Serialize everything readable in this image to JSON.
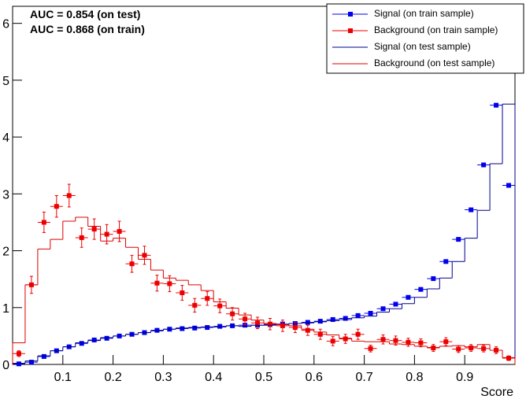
{
  "chart_data": {
    "type": "histogram",
    "x_label": "Score",
    "annotations": [
      "AUC = 0.854  (on test)",
      "AUC = 0.868 (on train)"
    ],
    "bins": [
      0,
      0.025,
      0.05,
      0.075,
      0.1,
      0.125,
      0.15,
      0.175,
      0.2,
      0.225,
      0.25,
      0.275,
      0.3,
      0.325,
      0.35,
      0.375,
      0.4,
      0.425,
      0.45,
      0.475,
      0.5,
      0.525,
      0.55,
      0.575,
      0.6,
      0.625,
      0.65,
      0.675,
      0.7,
      0.725,
      0.75,
      0.775,
      0.8,
      0.825,
      0.85,
      0.875,
      0.9,
      0.925,
      0.95,
      0.975,
      1
    ],
    "xlim": [
      0,
      1
    ],
    "ylim": [
      0,
      6.3
    ],
    "xticks": [
      0.1,
      0.2,
      0.3,
      0.4,
      0.5,
      0.6,
      0.7,
      0.8,
      0.9
    ],
    "yticks": [
      0,
      1,
      2,
      3,
      4,
      5,
      6
    ],
    "legend": "top-right",
    "series": [
      {
        "name": "Signal (on train sample)",
        "color": "#0000ee",
        "style": "markers",
        "values": [
          0.01,
          0.04,
          0.14,
          0.24,
          0.31,
          0.37,
          0.43,
          0.46,
          0.5,
          0.53,
          0.56,
          0.6,
          0.62,
          0.63,
          0.64,
          0.65,
          0.67,
          0.68,
          0.69,
          0.69,
          0.7,
          0.71,
          0.72,
          0.74,
          0.76,
          0.79,
          0.81,
          0.86,
          0.9,
          0.98,
          1.06,
          1.18,
          1.32,
          1.51,
          1.81,
          2.2,
          2.72,
          3.51,
          4.56,
          3.15
        ]
      },
      {
        "name": "Background (on train sample)",
        "color": "#ee0000",
        "style": "markers",
        "values": [
          0.19,
          1.4,
          2.5,
          2.78,
          2.97,
          2.23,
          2.38,
          2.29,
          2.34,
          1.77,
          1.92,
          1.43,
          1.42,
          1.26,
          1.04,
          1.16,
          1.03,
          0.89,
          0.8,
          0.73,
          0.71,
          0.68,
          0.65,
          0.6,
          0.53,
          0.41,
          0.45,
          0.53,
          0.28,
          0.44,
          0.42,
          0.39,
          0.38,
          0.29,
          0.4,
          0.27,
          0.29,
          0.28,
          0.25,
          0.11
        ],
        "errors": [
          0.05,
          0.15,
          0.18,
          0.19,
          0.2,
          0.17,
          0.18,
          0.17,
          0.18,
          0.15,
          0.16,
          0.14,
          0.14,
          0.13,
          0.12,
          0.12,
          0.12,
          0.11,
          0.1,
          0.1,
          0.1,
          0.1,
          0.09,
          0.09,
          0.09,
          0.08,
          0.08,
          0.09,
          0.06,
          0.08,
          0.08,
          0.07,
          0.07,
          0.06,
          0.07,
          0.06,
          0.06,
          0.06,
          0.06,
          0.04
        ]
      },
      {
        "name": "Signal (on test sample)",
        "color": "#00008b",
        "style": "step",
        "values": [
          0.02,
          0.06,
          0.15,
          0.24,
          0.31,
          0.38,
          0.42,
          0.47,
          0.5,
          0.53,
          0.56,
          0.59,
          0.62,
          0.64,
          0.65,
          0.66,
          0.66,
          0.68,
          0.67,
          0.69,
          0.69,
          0.7,
          0.72,
          0.73,
          0.75,
          0.77,
          0.79,
          0.82,
          0.85,
          0.92,
          0.98,
          1.07,
          1.18,
          1.33,
          1.52,
          1.81,
          2.22,
          2.71,
          3.53,
          4.58
        ]
      },
      {
        "name": "Background (on test sample)",
        "color": "#dd0000",
        "style": "step",
        "values": [
          0.38,
          1.4,
          2.03,
          2.2,
          2.52,
          2.59,
          2.43,
          2.17,
          2.22,
          2.06,
          1.85,
          1.66,
          1.52,
          1.48,
          1.4,
          1.3,
          1.1,
          0.99,
          0.87,
          0.78,
          0.72,
          0.7,
          0.68,
          0.62,
          0.57,
          0.52,
          0.46,
          0.41,
          0.4,
          0.4,
          0.36,
          0.35,
          0.32,
          0.3,
          0.32,
          0.33,
          0.31,
          0.35,
          0.25,
          0.12
        ]
      }
    ]
  }
}
